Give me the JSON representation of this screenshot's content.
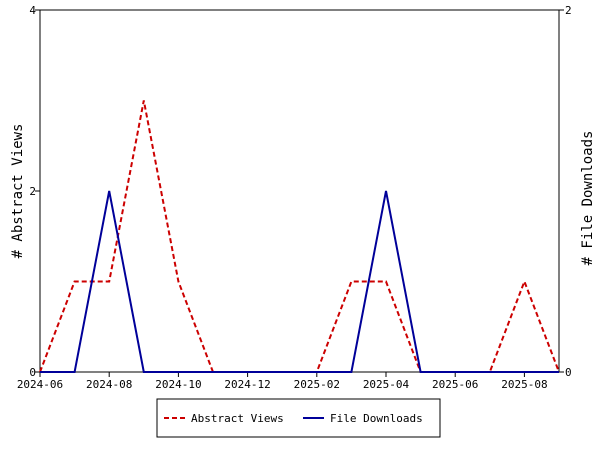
{
  "chart_data": {
    "type": "line",
    "x_ticks": [
      "2024-06",
      "2024-08",
      "2024-10",
      "2024-12",
      "2025-02",
      "2025-04",
      "2025-06",
      "2025-08"
    ],
    "x_range": [
      "2024-06",
      "2025-09"
    ],
    "y_left": {
      "label": "# Abstract Views",
      "range": [
        0,
        4
      ],
      "ticks": [
        "0",
        "2",
        "4"
      ]
    },
    "y_right": {
      "label": "# File Downloads",
      "range": [
        0,
        2
      ],
      "ticks": [
        "0",
        "2"
      ]
    },
    "grid": false,
    "legend_position": "bottom-center",
    "series": [
      {
        "name": "Abstract Views",
        "axis": "left",
        "color": "#cc0000",
        "style": "dashed",
        "points": [
          [
            "2024-06",
            0
          ],
          [
            "2024-07",
            1
          ],
          [
            "2024-08",
            1
          ],
          [
            "2024-09",
            3
          ],
          [
            "2024-10",
            1
          ],
          [
            "2024-11",
            0
          ],
          [
            "2024-12",
            0
          ],
          [
            "2025-01",
            0
          ],
          [
            "2025-02",
            0
          ],
          [
            "2025-03",
            1
          ],
          [
            "2025-04",
            1
          ],
          [
            "2025-05",
            0
          ],
          [
            "2025-06",
            0
          ],
          [
            "2025-07",
            0
          ],
          [
            "2025-08",
            1
          ],
          [
            "2025-09",
            0
          ]
        ]
      },
      {
        "name": "File Downloads",
        "axis": "right",
        "color": "#000099",
        "style": "solid",
        "points": [
          [
            "2024-06",
            0
          ],
          [
            "2024-07",
            0
          ],
          [
            "2024-08",
            1
          ],
          [
            "2024-09",
            0
          ],
          [
            "2024-10",
            0
          ],
          [
            "2024-11",
            0
          ],
          [
            "2024-12",
            0
          ],
          [
            "2025-01",
            0
          ],
          [
            "2025-02",
            0
          ],
          [
            "2025-03",
            0
          ],
          [
            "2025-04",
            1
          ],
          [
            "2025-05",
            0
          ],
          [
            "2025-06",
            0
          ],
          [
            "2025-07",
            0
          ],
          [
            "2025-08",
            0
          ],
          [
            "2025-09",
            0
          ]
        ]
      }
    ]
  }
}
